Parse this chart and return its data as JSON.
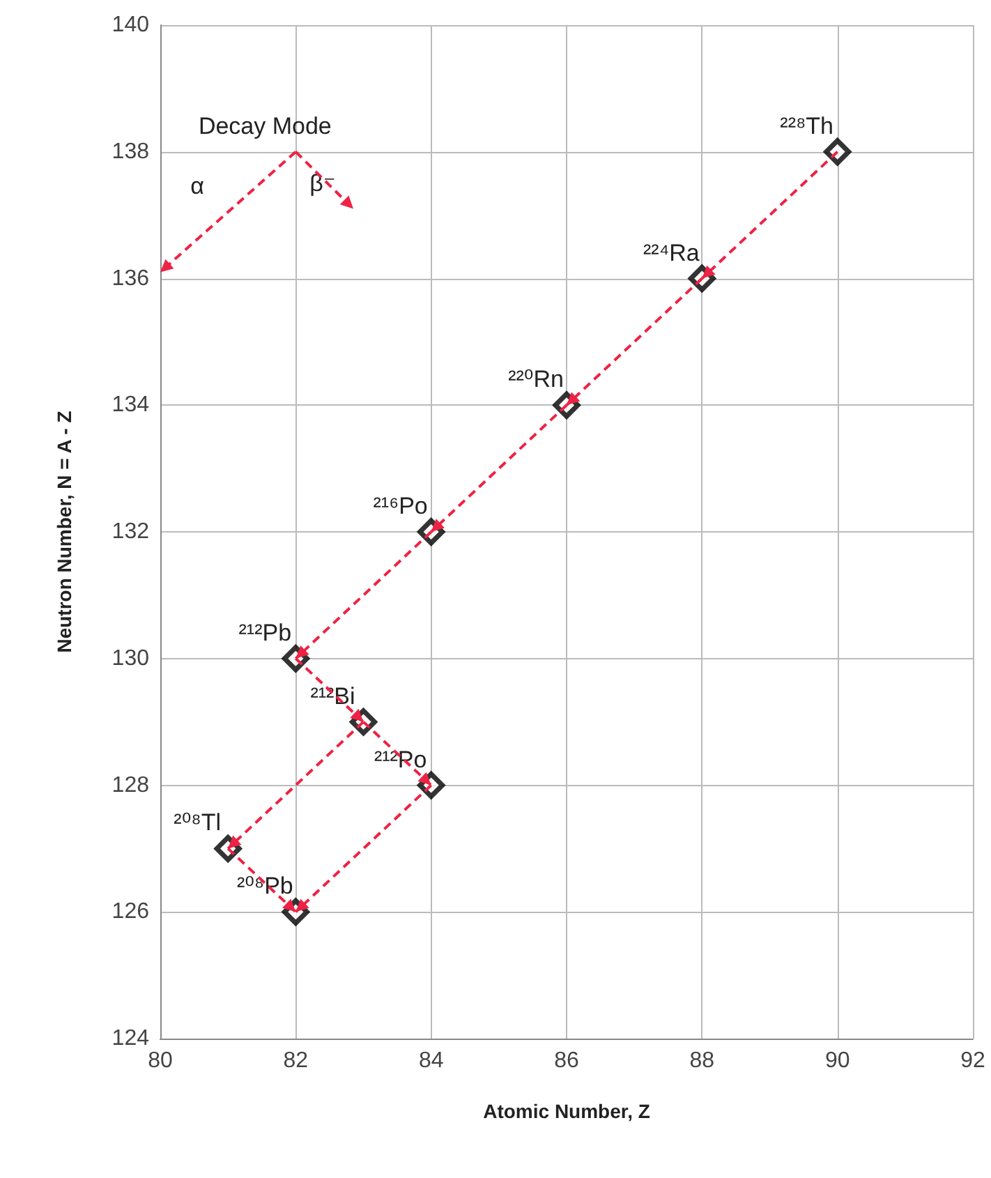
{
  "chart_data": {
    "type": "scatter",
    "xlabel": "Atomic Number, Z",
    "ylabel": "Neutron Number, N = A - Z",
    "xlim": [
      80,
      92
    ],
    "xticks": [
      80,
      82,
      84,
      86,
      88,
      90,
      92
    ],
    "ylim": [
      124,
      140
    ],
    "yticks": [
      124,
      126,
      128,
      130,
      132,
      134,
      136,
      138,
      140
    ],
    "grid": true,
    "series": [
      {
        "type": "line",
        "color": "#ee2244",
        "line_style": "dashed",
        "x": [
          82,
          80
        ],
        "values": [
          138,
          136.1
        ]
      },
      {
        "type": "line",
        "color": "#ee2244",
        "line_style": "dashed",
        "x": [
          82,
          82.85
        ],
        "values": [
          138,
          137.1
        ]
      },
      {
        "type": "line",
        "color": "#ee2244",
        "line_style": "dashed",
        "x": [
          90,
          88
        ],
        "values": [
          138,
          136
        ]
      },
      {
        "type": "line",
        "color": "#ee2244",
        "line_style": "dashed",
        "x": [
          88,
          86
        ],
        "values": [
          136,
          134
        ]
      },
      {
        "type": "line",
        "color": "#ee2244",
        "line_style": "dashed",
        "x": [
          86,
          84
        ],
        "values": [
          134,
          132
        ]
      },
      {
        "type": "line",
        "color": "#ee2244",
        "line_style": "dashed",
        "x": [
          84,
          82
        ],
        "values": [
          132,
          130
        ]
      },
      {
        "type": "line",
        "color": "#ee2244",
        "line_style": "dashed",
        "x": [
          82,
          83
        ],
        "values": [
          130,
          129
        ]
      },
      {
        "type": "line",
        "color": "#ee2244",
        "line_style": "dashed",
        "x": [
          83,
          84
        ],
        "values": [
          129,
          128
        ]
      },
      {
        "type": "line",
        "color": "#ee2244",
        "line_style": "dashed",
        "x": [
          83,
          81
        ],
        "values": [
          129,
          127
        ]
      },
      {
        "type": "line",
        "color": "#ee2244",
        "line_style": "dashed",
        "x": [
          84,
          82
        ],
        "values": [
          128,
          126
        ]
      },
      {
        "type": "line",
        "color": "#ee2244",
        "line_style": "dashed",
        "x": [
          81,
          82
        ],
        "values": [
          127,
          126
        ]
      },
      {
        "type": "scatter",
        "color": "#000000",
        "marker": "diamond",
        "x": [
          90,
          88,
          86,
          84,
          82,
          83,
          84,
          81,
          82
        ],
        "values": [
          138,
          136,
          134,
          132,
          130,
          129,
          128,
          127,
          126
        ]
      }
    ],
    "annotations": [
      {
        "text": "Decay Mode",
        "x": 82,
        "y": 138
      },
      {
        "text": "α",
        "x": 81,
        "y": 137.05
      },
      {
        "text": "β⁻",
        "x": 82.85,
        "y": 137.1
      },
      {
        "text": "²²⁸Th",
        "x": 90,
        "y": 138
      },
      {
        "text": "²²⁴Ra",
        "x": 88,
        "y": 136
      },
      {
        "text": "²²⁰Rn",
        "x": 86,
        "y": 134
      },
      {
        "text": "²¹⁶Po",
        "x": 84,
        "y": 132
      },
      {
        "text": "²¹²Pb",
        "x": 82,
        "y": 130
      },
      {
        "text": "²¹²Bi",
        "x": 83,
        "y": 129
      },
      {
        "text": "²¹²Po",
        "x": 84,
        "y": 128
      },
      {
        "text": "²⁰⁸Tl",
        "x": 81,
        "y": 127
      },
      {
        "text": "²⁰⁸Pb",
        "x": 82,
        "y": 126
      }
    ]
  }
}
